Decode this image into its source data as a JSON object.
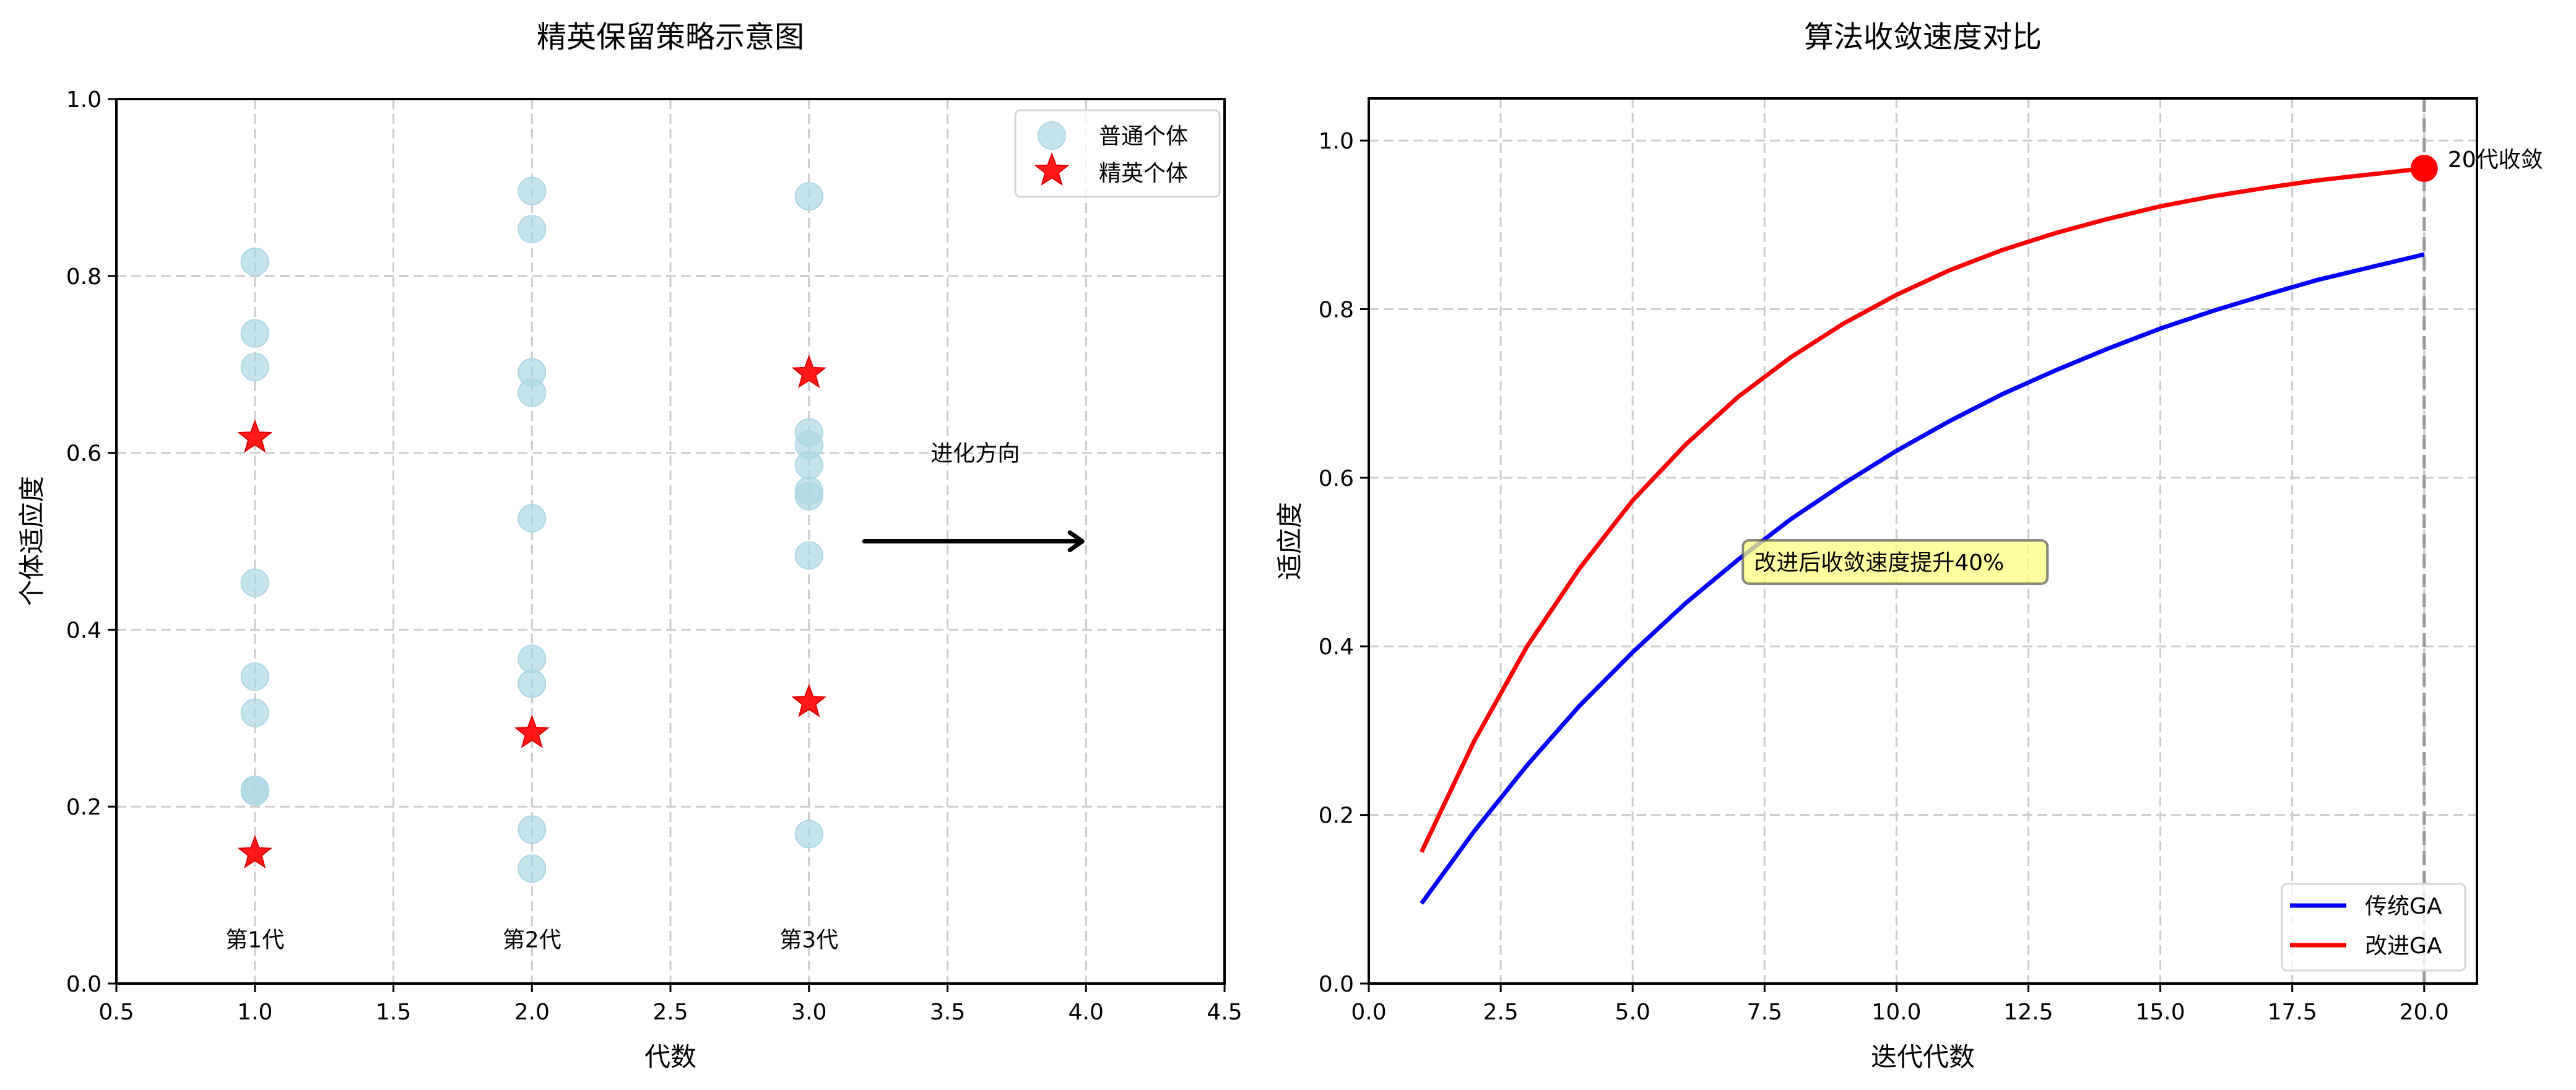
{
  "chart_data": [
    {
      "type": "scatter",
      "title": "精英保留策略示意图",
      "xlabel": "代数",
      "ylabel": "个体适应度",
      "xlim": [
        0.5,
        4.5
      ],
      "ylim": [
        0.0,
        1.0
      ],
      "xticks": [
        "0.5",
        "1.0",
        "1.5",
        "2.0",
        "2.5",
        "3.0",
        "3.5",
        "4.0",
        "4.5"
      ],
      "xtick_values": [
        0.5,
        1.0,
        1.5,
        2.0,
        2.5,
        3.0,
        3.5,
        4.0,
        4.5
      ],
      "yticks": [
        "0.0",
        "0.2",
        "0.4",
        "0.6",
        "0.8",
        "1.0"
      ],
      "ytick_values": [
        0.0,
        0.2,
        0.4,
        0.6,
        0.8,
        1.0
      ],
      "grid": true,
      "legend_position": "upper right",
      "series": [
        {
          "name": "普通个体",
          "marker": "circle",
          "color": "#add8e6",
          "points": [
            [
              1,
              0.816
            ],
            [
              1,
              0.735
            ],
            [
              1,
              0.697
            ],
            [
              1,
              0.453
            ],
            [
              1,
              0.347
            ],
            [
              1,
              0.306
            ],
            [
              1,
              0.219
            ],
            [
              1,
              0.217
            ],
            [
              2,
              0.896
            ],
            [
              2,
              0.853
            ],
            [
              2,
              0.691
            ],
            [
              2,
              0.668
            ],
            [
              2,
              0.526
            ],
            [
              2,
              0.367
            ],
            [
              2,
              0.339
            ],
            [
              2,
              0.174
            ],
            [
              2,
              0.13
            ],
            [
              3,
              0.89
            ],
            [
              3,
              0.623
            ],
            [
              3,
              0.609
            ],
            [
              3,
              0.586
            ],
            [
              3,
              0.557
            ],
            [
              3,
              0.551
            ],
            [
              3,
              0.484
            ],
            [
              3,
              0.169
            ]
          ]
        },
        {
          "name": "精英个体",
          "marker": "star",
          "color": "#ff0000",
          "points": [
            [
              1,
              0.617
            ],
            [
              1,
              0.147
            ],
            [
              2,
              0.283
            ],
            [
              3,
              0.69
            ],
            [
              3,
              0.318
            ]
          ]
        }
      ],
      "annotations": [
        {
          "text": "第1代",
          "x": 1,
          "y": 0.05
        },
        {
          "text": "第2代",
          "x": 2,
          "y": 0.05
        },
        {
          "text": "第3代",
          "x": 3,
          "y": 0.05
        },
        {
          "text": "进化方向",
          "x": 3.6,
          "y": 0.6
        },
        {
          "type": "arrow",
          "from": [
            3.2,
            0.5
          ],
          "to": [
            4.0,
            0.5
          ]
        }
      ]
    },
    {
      "type": "line",
      "title": "算法收敛速度对比",
      "xlabel": "迭代代数",
      "ylabel": "适应度",
      "xlim": [
        0.0,
        21.0
      ],
      "ylim": [
        0.0,
        1.05
      ],
      "xticks": [
        "0.0",
        "2.5",
        "5.0",
        "7.5",
        "10.0",
        "12.5",
        "15.0",
        "17.5",
        "20.0"
      ],
      "xtick_values": [
        0,
        2.5,
        5,
        7.5,
        10,
        12.5,
        15,
        17.5,
        20
      ],
      "yticks": [
        "0.0",
        "0.2",
        "0.4",
        "0.6",
        "0.8",
        "1.0"
      ],
      "ytick_values": [
        0.0,
        0.2,
        0.4,
        0.6,
        0.8,
        1.0
      ],
      "grid": true,
      "legend_position": "lower right",
      "x": [
        1,
        2,
        3,
        4,
        5,
        6,
        7,
        8,
        9,
        10,
        11,
        12,
        13,
        14,
        15,
        16,
        17,
        18,
        19,
        20
      ],
      "series": [
        {
          "name": "传统GA",
          "color": "#0000ff",
          "values": [
            0.095,
            0.181,
            0.259,
            0.33,
            0.393,
            0.451,
            0.503,
            0.551,
            0.593,
            0.632,
            0.667,
            0.699,
            0.727,
            0.753,
            0.777,
            0.798,
            0.817,
            0.835,
            0.85,
            0.865
          ]
        },
        {
          "name": "改进GA",
          "color": "#ff0000",
          "values": [
            0.156,
            0.288,
            0.4,
            0.493,
            0.573,
            0.639,
            0.696,
            0.743,
            0.783,
            0.817,
            0.846,
            0.87,
            0.89,
            0.907,
            0.922,
            0.934,
            0.944,
            0.953,
            0.96,
            0.967
          ]
        }
      ],
      "annotations": [
        {
          "text": "改进后收敛速度提升40%",
          "x": 7.3,
          "y": 0.5,
          "box_color": "#ffff80"
        },
        {
          "text": "20代收敛",
          "x": 20.4,
          "y": 0.967,
          "marker": {
            "x": 20,
            "y": 0.967,
            "color": "#ff0000"
          }
        },
        {
          "type": "vline",
          "x": 20,
          "color": "#999999",
          "style": "dashed"
        }
      ]
    }
  ],
  "labels": {
    "left_title": "精英保留策略示意图",
    "left_xlabel": "代数",
    "left_ylabel": "个体适应度",
    "left_legend_normal": "普通个体",
    "left_legend_elite": "精英个体",
    "gen1": "第1代",
    "gen2": "第2代",
    "gen3": "第3代",
    "evolution_direction": "进化方向",
    "right_title": "算法收敛速度对比",
    "right_xlabel": "迭代代数",
    "right_ylabel": "适应度",
    "right_legend_traditional": "传统GA",
    "right_legend_improved": "改进GA",
    "speedup_note": "改进后收敛速度提升40%",
    "converge_note": "20代收敛"
  }
}
